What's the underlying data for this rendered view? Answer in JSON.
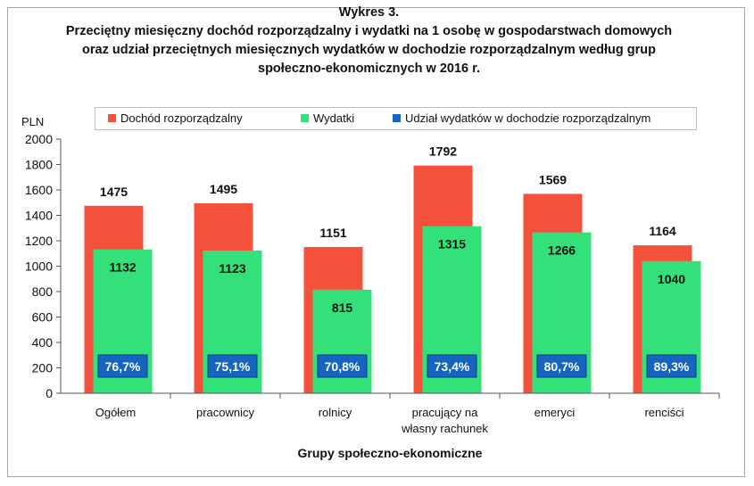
{
  "title": {
    "line1": "Wykres 3.",
    "line2": "Przeciętny miesięczny dochód rozporządzalny i wydatki na 1 osobę w gospodarstwach domowych",
    "line3": "oraz udział przeciętnych miesięcznych wydatków w dochodzie rozporządzalnym według grup",
    "line4": "społeczno-ekonomicznych w 2016 r."
  },
  "legend": {
    "income": "Dochód rozporządzalny",
    "expenses": "Wydatki",
    "share": "Udział wydatków w dochodzie rozporządzalnym"
  },
  "colors": {
    "income": "#f4513c",
    "expenses": "#33e07a",
    "share": "#1565c0"
  },
  "chart_data": {
    "type": "bar",
    "categories": [
      "Ogółem",
      "pracownicy",
      "rolnicy",
      "pracujący na\nwłasny rachunek",
      "emeryci",
      "renciści"
    ],
    "series": [
      {
        "name": "Dochód rozporządzalny",
        "values": [
          1475,
          1495,
          1151,
          1792,
          1569,
          1164
        ]
      },
      {
        "name": "Wydatki",
        "values": [
          1132,
          1123,
          815,
          1315,
          1266,
          1040
        ]
      }
    ],
    "share_labels": [
      "76,7%",
      "75,1%",
      "70,8%",
      "73,4%",
      "80,7%",
      "89,3%"
    ],
    "share_series_name": "Udział wydatków w dochodzie rozporządzalnym",
    "ylabel": "PLN",
    "xlabel": "Grupy społeczno-ekonomiczne",
    "ylim": [
      0,
      2000
    ],
    "yticks": [
      0,
      200,
      400,
      600,
      800,
      1000,
      1200,
      1400,
      1600,
      1800,
      2000
    ],
    "grid": false,
    "legend_position": "top"
  }
}
